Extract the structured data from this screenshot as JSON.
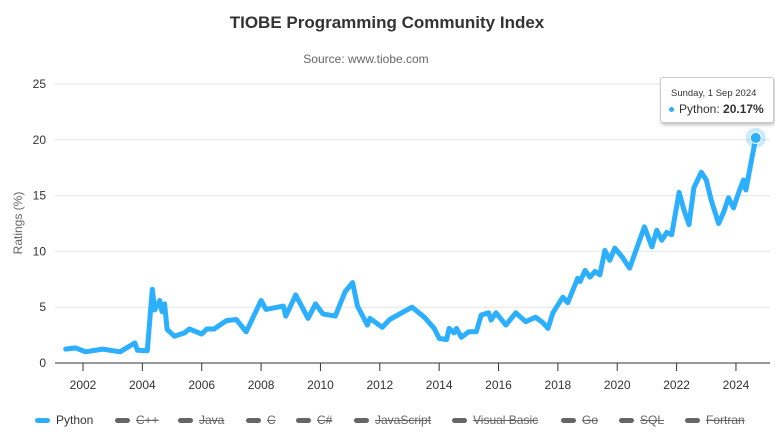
{
  "chart_data": {
    "type": "line",
    "title": "TIOBE Programming Community Index",
    "subtitle": "Source: www.tiobe.com",
    "ylabel": "Ratings (%)",
    "xlabel": "",
    "ylim": [
      0,
      25
    ],
    "yticks": [
      "0",
      "5",
      "10",
      "15",
      "20",
      "25"
    ],
    "xticks": [
      "2002",
      "2004",
      "2006",
      "2008",
      "2010",
      "2012",
      "2014",
      "2016",
      "2018",
      "2020",
      "2022",
      "2024"
    ],
    "grid": true,
    "legend_position": "bottom",
    "series": [
      {
        "name": "Python",
        "color": "#2caffe",
        "visible": true,
        "x": [
          "2001-06",
          "2001-10",
          "2002-02",
          "2002-09",
          "2003-04",
          "2003-10",
          "2003-11",
          "2004-03",
          "2004-05",
          "2004-06",
          "2004-08",
          "2004-09",
          "2004-10",
          "2004-11",
          "2005-02",
          "2005-06",
          "2005-08",
          "2006-01",
          "2006-03",
          "2006-06",
          "2006-11",
          "2007-03",
          "2007-07",
          "2008-01",
          "2008-03",
          "2008-10",
          "2008-11",
          "2009-03",
          "2009-08",
          "2009-11",
          "2010-02",
          "2010-07",
          "2010-11",
          "2011-02",
          "2011-04",
          "2011-08",
          "2011-09",
          "2012-02",
          "2012-05",
          "2013-02",
          "2013-07",
          "2013-11",
          "2014-01",
          "2014-04",
          "2014-05",
          "2014-07",
          "2014-08",
          "2014-10",
          "2015-01",
          "2015-04",
          "2015-06",
          "2015-09",
          "2015-10",
          "2015-12",
          "2016-04",
          "2016-08",
          "2016-12",
          "2017-04",
          "2017-07",
          "2017-09",
          "2017-11",
          "2018-03",
          "2018-05",
          "2018-09",
          "2018-10",
          "2018-12",
          "2019-02",
          "2019-04",
          "2019-06",
          "2019-08",
          "2019-10",
          "2019-12",
          "2020-03",
          "2020-06",
          "2020-12",
          "2021-03",
          "2021-05",
          "2021-07",
          "2021-09",
          "2021-11",
          "2022-02",
          "2022-04",
          "2022-06",
          "2022-08",
          "2022-11",
          "2023-01",
          "2023-03",
          "2023-06",
          "2023-08",
          "2023-10",
          "2023-12",
          "2024-02",
          "2024-04",
          "2024-05",
          "2024-09"
        ],
        "values": [
          1.25,
          1.35,
          1.0,
          1.25,
          1.0,
          1.8,
          1.15,
          1.1,
          6.6,
          4.75,
          5.6,
          4.6,
          5.3,
          3.0,
          2.4,
          2.7,
          3.05,
          2.6,
          3.05,
          3.05,
          3.8,
          3.9,
          2.8,
          5.6,
          4.8,
          5.1,
          4.2,
          6.1,
          4.0,
          5.3,
          4.4,
          4.2,
          6.4,
          7.2,
          5.1,
          3.4,
          4.0,
          3.2,
          3.9,
          5.0,
          4.1,
          3.1,
          2.2,
          2.1,
          3.1,
          2.7,
          3.1,
          2.3,
          2.8,
          2.8,
          4.3,
          4.5,
          3.85,
          4.5,
          3.4,
          4.5,
          3.7,
          4.1,
          3.6,
          3.1,
          4.5,
          5.9,
          5.4,
          7.6,
          7.3,
          8.3,
          7.7,
          8.2,
          7.9,
          10.1,
          9.2,
          10.3,
          9.5,
          8.5,
          12.2,
          10.4,
          11.9,
          11.0,
          11.7,
          11.5,
          15.3,
          13.7,
          12.4,
          15.7,
          17.1,
          16.4,
          14.6,
          12.5,
          13.5,
          14.8,
          13.9,
          15.2,
          16.4,
          15.5,
          20.17
        ]
      },
      {
        "name": "C++",
        "color": "#666666",
        "visible": false
      },
      {
        "name": "Java",
        "color": "#666666",
        "visible": false
      },
      {
        "name": "C",
        "color": "#666666",
        "visible": false
      },
      {
        "name": "C#",
        "color": "#666666",
        "visible": false
      },
      {
        "name": "JavaScript",
        "color": "#666666",
        "visible": false
      },
      {
        "name": "Visual Basic",
        "color": "#666666",
        "visible": false
      },
      {
        "name": "Go",
        "color": "#666666",
        "visible": false
      },
      {
        "name": "SQL",
        "color": "#666666",
        "visible": false
      },
      {
        "name": "Fortran",
        "color": "#666666",
        "visible": false
      }
    ],
    "tooltip": {
      "date": "Sunday, 1 Sep 2024",
      "series": "Python",
      "value_label": "20.17%"
    }
  }
}
